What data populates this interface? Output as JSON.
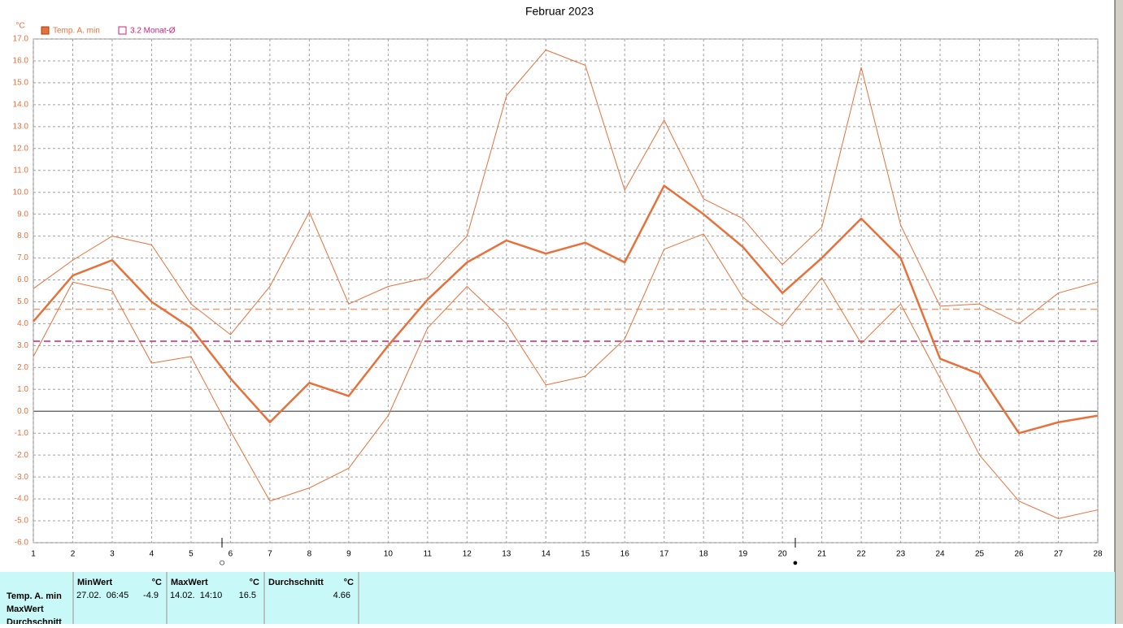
{
  "chart_data": {
    "type": "line",
    "title": "Februar 2023",
    "y_unit": "°C",
    "x": [
      1,
      2,
      3,
      4,
      5,
      6,
      7,
      8,
      9,
      10,
      11,
      12,
      13,
      14,
      15,
      16,
      17,
      18,
      19,
      20,
      21,
      22,
      23,
      24,
      25,
      26,
      27,
      28
    ],
    "xlim": [
      1,
      28
    ],
    "xticks": [
      1,
      2,
      3,
      4,
      5,
      6,
      7,
      8,
      9,
      10,
      11,
      12,
      13,
      14,
      15,
      16,
      17,
      18,
      19,
      20,
      21,
      22,
      23,
      24,
      25,
      26,
      27,
      28
    ],
    "ylim": [
      -6,
      17
    ],
    "yticks": [
      {
        "value": 17,
        "label": "17.0"
      },
      {
        "value": 16,
        "label": "16.0"
      },
      {
        "value": 15,
        "label": "15.0"
      },
      {
        "value": 14,
        "label": "14.0"
      },
      {
        "value": 13,
        "label": "13.0"
      },
      {
        "value": 12,
        "label": "12.0"
      },
      {
        "value": 11,
        "label": "11.0"
      },
      {
        "value": 10,
        "label": "10.0"
      },
      {
        "value": 9,
        "label": "9.0"
      },
      {
        "value": 8,
        "label": "8.0"
      },
      {
        "value": 7,
        "label": "7.0"
      },
      {
        "value": 6,
        "label": "6.0"
      },
      {
        "value": 5,
        "label": "5.0"
      },
      {
        "value": 4,
        "label": "4.0"
      },
      {
        "value": 3,
        "label": "3.0"
      },
      {
        "value": 2,
        "label": "2.0"
      },
      {
        "value": 1,
        "label": "1.0"
      },
      {
        "value": 0,
        "label": "0.0"
      },
      {
        "value": -1,
        "label": "-1.0"
      },
      {
        "value": -2,
        "label": "-2.0"
      },
      {
        "value": -3,
        "label": "-3.0"
      },
      {
        "value": -4,
        "label": "-4.0"
      },
      {
        "value": -5,
        "label": "-5.0"
      },
      {
        "value": -6,
        "label": "-6.0"
      }
    ],
    "grid": true,
    "series": [
      {
        "name": "Temp. A. min",
        "color": "#e8703a",
        "width": 2.5,
        "values": [
          4.1,
          6.2,
          6.9,
          5.0,
          3.8,
          1.5,
          -0.5,
          1.3,
          0.7,
          3.0,
          5.1,
          6.8,
          7.8,
          7.2,
          7.7,
          6.8,
          10.3,
          9.0,
          7.5,
          5.4,
          7.0,
          8.8,
          7.0,
          2.4,
          1.7,
          -1.0,
          -0.5,
          -0.2
        ]
      },
      {
        "color": "#e8703a",
        "width": 1,
        "values": [
          5.6,
          6.9,
          8.0,
          7.6,
          4.9,
          3.5,
          5.7,
          9.1,
          4.9,
          5.7,
          6.1,
          8.0,
          14.4,
          16.5,
          15.8,
          10.1,
          13.3,
          9.7,
          8.8,
          6.7,
          8.4,
          15.7,
          8.5,
          4.8,
          4.9,
          4.0,
          5.4,
          5.9
        ]
      },
      {
        "color": "#e8703a",
        "width": 1,
        "values": [
          2.5,
          5.9,
          5.5,
          2.2,
          2.5,
          -0.9,
          -4.1,
          -3.5,
          -2.6,
          -0.2,
          3.8,
          5.7,
          4.0,
          1.2,
          1.6,
          3.3,
          7.4,
          8.1,
          5.2,
          3.9,
          6.1,
          3.1,
          4.9,
          1.5,
          -2.0,
          -4.1,
          -4.9,
          -4.5
        ]
      }
    ],
    "reference_lines": [
      {
        "value": 4.66,
        "color": "#e8a070"
      },
      {
        "value": 3.2,
        "label": "3.2 Monat-Ø",
        "color": "#d0207a"
      }
    ]
  },
  "table": {
    "row_labels": [
      "Temp. A. min",
      "MaxWert",
      "Durchschnitt"
    ],
    "columns": [
      {
        "header": "MinWert",
        "unit": "°C",
        "time": "27.02.  06:45",
        "value": -4.9
      },
      {
        "header": "MaxWert",
        "unit": "°C",
        "time": "14.02.  14:10",
        "value": 16.5
      },
      {
        "header": "Durchschnitt",
        "unit": "°C",
        "value": 4.66
      }
    ]
  }
}
